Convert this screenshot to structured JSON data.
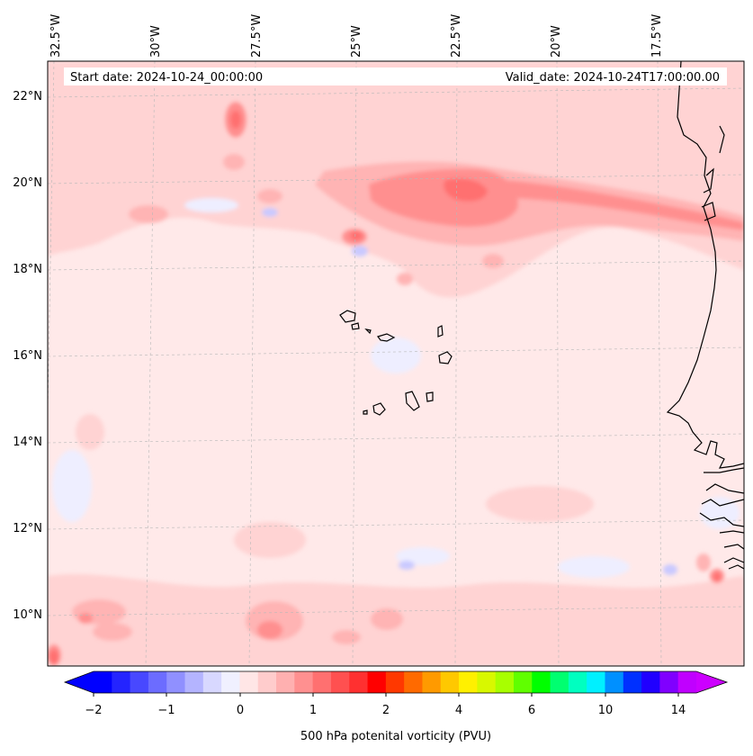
{
  "map": {
    "start_date": "Start date: 2024-10-24_00:00:00",
    "valid_date": "Valid_date: 2024-10-24T17:00:00.00",
    "lon_labels": [
      "32.5°W",
      "30°W",
      "27.5°W",
      "25°W",
      "22.5°W",
      "20°W",
      "17.5°W"
    ],
    "lat_labels": [
      "22°N",
      "20°N",
      "18°N",
      "16°N",
      "14°N",
      "12°N",
      "10°N"
    ],
    "gridlines": true,
    "coastline_color": "#000000"
  },
  "colorbar": {
    "label": "500 hPa potenital vorticity (PVU)",
    "tick_labels": [
      "−2",
      "−1",
      "0",
      "1",
      "2",
      "4",
      "6",
      "10",
      "14"
    ],
    "colors": [
      "#0000ff",
      "#2424ff",
      "#4848ff",
      "#6c6cff",
      "#9090ff",
      "#b4b4ff",
      "#d8d8ff",
      "#f0f0ff",
      "#ffe6e6",
      "#ffcccc",
      "#ffb0b0",
      "#ff9090",
      "#ff7070",
      "#ff5050",
      "#ff3030",
      "#ff0000",
      "#ff3800",
      "#ff6a00",
      "#ff9a00",
      "#ffc800",
      "#fff000",
      "#d8f800",
      "#a8ff00",
      "#60ff00",
      "#00ff00",
      "#00ff70",
      "#00ffc0",
      "#00f0ff",
      "#0090ff",
      "#0030ff",
      "#2000ff",
      "#8000ff",
      "#c000ff"
    ],
    "extend_low_color": "#0000ff",
    "extend_high_color": "#cc00ff"
  },
  "field_colors": {
    "background": "#ffe9e9",
    "light": "#ffd3d3",
    "medium": "#ffb4b4",
    "strong": "#ff8f8f",
    "core": "#ff6f6f",
    "neg_light": "#eeeeff",
    "neg_medium": "#c9c9ff",
    "neg_strong": "#8f8fff"
  }
}
